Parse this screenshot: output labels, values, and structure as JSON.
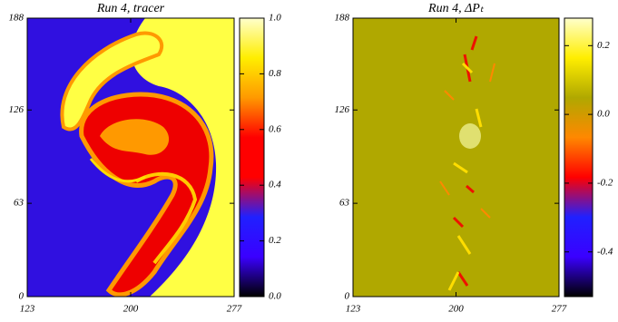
{
  "chart_data": [
    {
      "type": "field",
      "title": "Run 4, tracer",
      "xlim": [
        123,
        277
      ],
      "xticks": [
        123,
        200,
        277
      ],
      "ylim": [
        0,
        188
      ],
      "yticks": [
        0,
        63,
        126,
        188
      ],
      "colorbar": {
        "lim": [
          0,
          1
        ],
        "ticks": [
          {
            "value": 0,
            "label": "0.0"
          },
          0.2,
          0.4,
          0.6,
          0.8,
          {
            "value": 1,
            "label": "1.0"
          }
        ],
        "colors": [
          "#000000",
          "#3a00ff",
          "#2020ff",
          "#ff0000",
          "#ff0000",
          "#ff9900",
          "#ffee00",
          "#ffffcc"
        ]
      }
    },
    {
      "type": "field",
      "title": "Run 4, ΔPₜ",
      "xlim": [
        123,
        277
      ],
      "xticks": [
        123,
        200,
        277
      ],
      "ylim": [
        0,
        188
      ],
      "yticks": [
        0,
        63,
        126,
        188
      ],
      "colorbar": {
        "lim": [
          -0.53,
          0.28
        ],
        "ticks": [
          -0.4,
          -0.2,
          {
            "value": 0,
            "label": "0.0"
          },
          0.2
        ],
        "colors": [
          "#000000",
          "#3a00ff",
          "#2020ff",
          "#ff0000",
          "#ff8800",
          "#b0a800",
          "#ffee00",
          "#ffffcc"
        ]
      }
    }
  ]
}
